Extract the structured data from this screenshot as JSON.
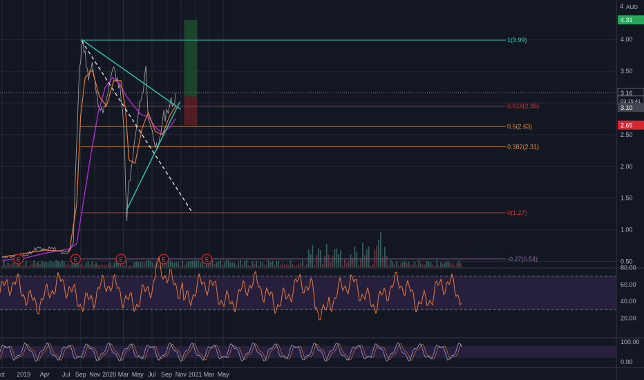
{
  "colors": {
    "background": "#131722",
    "grid": "#262a36",
    "price": "#c9c9c9",
    "ma_fast": "#e8793a",
    "ma_slow": "#b02ad6",
    "trendline": "#2ec9b7",
    "fib_red": "#d63a3a",
    "fib_orange": "#e8943a",
    "rsi": "#e8793a",
    "rsi_band": "#2a2140",
    "long_profit": "#1c4a2d",
    "long_stop": "#5a1f24",
    "volume_up": "#3a7a6e",
    "volume_down": "#8a3a4a"
  },
  "chart_data": {
    "type": "line",
    "currency": "AUD",
    "x_ticks": [
      "ct",
      "2019",
      "Apr",
      "Jul",
      "Sep",
      "Nov",
      "2020",
      "Mar",
      "May",
      "Jul",
      "Sep",
      "Nov",
      "2021",
      "Mar",
      "May"
    ],
    "y_ticks": [
      "4.00",
      "3.50",
      "3.00",
      "2.50",
      "2.00",
      "1.50",
      "1.00",
      "0.50"
    ],
    "top_tick": "4",
    "ylim": [
      0.45,
      4.55
    ],
    "price_series": [
      [
        "2018-10-01",
        0.56
      ],
      [
        "2018-11-01",
        0.58
      ],
      [
        "2018-12-01",
        0.57
      ],
      [
        "2019-01-01",
        0.58
      ],
      [
        "2019-02-01",
        0.64
      ],
      [
        "2019-03-01",
        0.72
      ],
      [
        "2019-04-01",
        0.68
      ],
      [
        "2019-05-01",
        0.72
      ],
      [
        "2019-06-01",
        0.66
      ],
      [
        "2019-07-01",
        0.62
      ],
      [
        "2019-07-20",
        0.7
      ],
      [
        "2019-08-01",
        0.78
      ],
      [
        "2019-08-10",
        1.95
      ],
      [
        "2019-08-20",
        2.9
      ],
      [
        "2019-08-28",
        3.5
      ],
      [
        "2019-09-05",
        4.0
      ],
      [
        "2019-09-20",
        3.7
      ],
      [
        "2019-10-05",
        3.45
      ],
      [
        "2019-10-20",
        3.6
      ],
      [
        "2019-11-05",
        3.2
      ],
      [
        "2019-11-20",
        2.95
      ],
      [
        "2019-12-05",
        2.8
      ],
      [
        "2019-12-20",
        3.1
      ],
      [
        "2020-01-05",
        3.35
      ],
      [
        "2020-01-20",
        3.55
      ],
      [
        "2020-02-05",
        3.4
      ],
      [
        "2020-02-20",
        3.1
      ],
      [
        "2020-03-05",
        2.4
      ],
      [
        "2020-03-16",
        1.25
      ],
      [
        "2020-03-25",
        1.65
      ],
      [
        "2020-04-10",
        2.2
      ],
      [
        "2020-04-25",
        2.55
      ],
      [
        "2020-05-10",
        3.0
      ],
      [
        "2020-05-25",
        3.25
      ],
      [
        "2020-06-05",
        3.5
      ],
      [
        "2020-06-15",
        2.8
      ],
      [
        "2020-07-01",
        2.55
      ],
      [
        "2020-07-15",
        2.3
      ],
      [
        "2020-08-01",
        2.42
      ],
      [
        "2020-08-15",
        2.75
      ],
      [
        "2020-09-01",
        2.85
      ],
      [
        "2020-09-15",
        3.05
      ],
      [
        "2020-10-01",
        2.9
      ],
      [
        "2020-10-10",
        3.16
      ]
    ],
    "ma_fast_series": [
      [
        "2018-10-01",
        0.57
      ],
      [
        "2019-04-01",
        0.68
      ],
      [
        "2019-07-15",
        0.66
      ],
      [
        "2019-08-15",
        1.4
      ],
      [
        "2019-09-01",
        2.8
      ],
      [
        "2019-09-20",
        3.4
      ],
      [
        "2019-10-20",
        3.52
      ],
      [
        "2019-11-20",
        3.1
      ],
      [
        "2019-12-20",
        2.95
      ],
      [
        "2020-01-20",
        3.35
      ],
      [
        "2020-02-20",
        3.35
      ],
      [
        "2020-03-10",
        2.9
      ],
      [
        "2020-03-25",
        2.1
      ],
      [
        "2020-04-20",
        2.05
      ],
      [
        "2020-05-20",
        2.6
      ],
      [
        "2020-06-15",
        2.85
      ],
      [
        "2020-07-15",
        2.55
      ],
      [
        "2020-08-15",
        2.5
      ],
      [
        "2020-09-15",
        2.8
      ],
      [
        "2020-10-10",
        2.95
      ]
    ],
    "ma_slow_series": [
      [
        "2018-10-01",
        0.52
      ],
      [
        "2019-01-01",
        0.55
      ],
      [
        "2019-04-01",
        0.63
      ],
      [
        "2019-07-15",
        0.7
      ],
      [
        "2019-08-15",
        0.78
      ],
      [
        "2019-09-15",
        1.5
      ],
      [
        "2019-10-15",
        2.2
      ],
      [
        "2019-11-15",
        2.85
      ],
      [
        "2019-12-15",
        3.25
      ],
      [
        "2020-01-15",
        3.4
      ],
      [
        "2020-02-15",
        3.3
      ],
      [
        "2020-03-15",
        3.1
      ],
      [
        "2020-04-15",
        2.95
      ],
      [
        "2020-05-15",
        2.82
      ],
      [
        "2020-06-15",
        2.78
      ],
      [
        "2020-07-15",
        2.62
      ],
      [
        "2020-08-15",
        2.52
      ],
      [
        "2020-09-15",
        2.62
      ],
      [
        "2020-10-10",
        2.75
      ]
    ],
    "trendlines": [
      {
        "from": [
          "2019-09-05",
          4.0
        ],
        "to": [
          "2020-11-01",
          2.9
        ],
        "style": "solid"
      },
      {
        "from": [
          "2020-03-16",
          1.32
        ],
        "to": [
          "2020-10-28",
          3.02
        ],
        "style": "solid"
      },
      {
        "from": [
          "2019-09-05",
          3.98
        ],
        "to": [
          "2020-12-15",
          1.3
        ],
        "style": "dashed"
      }
    ],
    "fib_levels": [
      {
        "label": "1(3.99)",
        "value": 3.99,
        "color": "#2ec9b7"
      },
      {
        "label": "0.618(2.95)",
        "value": 2.95,
        "color": "#d63a3a"
      },
      {
        "label": "0.5(2.63)",
        "value": 2.63,
        "color": "#e8943a"
      },
      {
        "label": "0.382(2.31)",
        "value": 2.31,
        "color": "#e8943a"
      },
      {
        "label": "0(1.27)",
        "value": 1.27,
        "color": "#d63a3a"
      },
      {
        "label": "-0.27(0.54)",
        "value": 0.54,
        "color": "#8a6aa0"
      }
    ],
    "position": {
      "target": 4.31,
      "entry": 3.1,
      "stop": 2.65,
      "from": "2020-11-15",
      "to": "2021-01-10"
    },
    "price_tags": [
      {
        "label": "4.31",
        "value": 4.31,
        "bg": "#26a65b",
        "fg": "#ffffff"
      },
      {
        "label": "3.16",
        "value": 3.16,
        "bg": "#131722",
        "fg": "#d1d4dc"
      },
      {
        "label": "03:15:41",
        "value": 3.04,
        "bg": "#131722",
        "fg": "#d1d4dc"
      },
      {
        "label": "3.10",
        "value": 2.93,
        "bg": "#434651",
        "fg": "#ffffff"
      },
      {
        "label": "2.65",
        "value": 2.65,
        "bg": "#d6262f",
        "fg": "#ffffff"
      }
    ],
    "earnings_markers": [
      "2018-12-10",
      "2019-08-10",
      "2020-02-20",
      "2020-08-20",
      "2021-02-20"
    ],
    "earnings_label": "E",
    "rsi": {
      "ticks": [
        "80.00",
        "60.00",
        "40.00",
        "20.00"
      ],
      "upper": 70,
      "lower": 30
    },
    "stoch": {
      "ticks": [
        "100.00",
        "0.00"
      ]
    }
  }
}
